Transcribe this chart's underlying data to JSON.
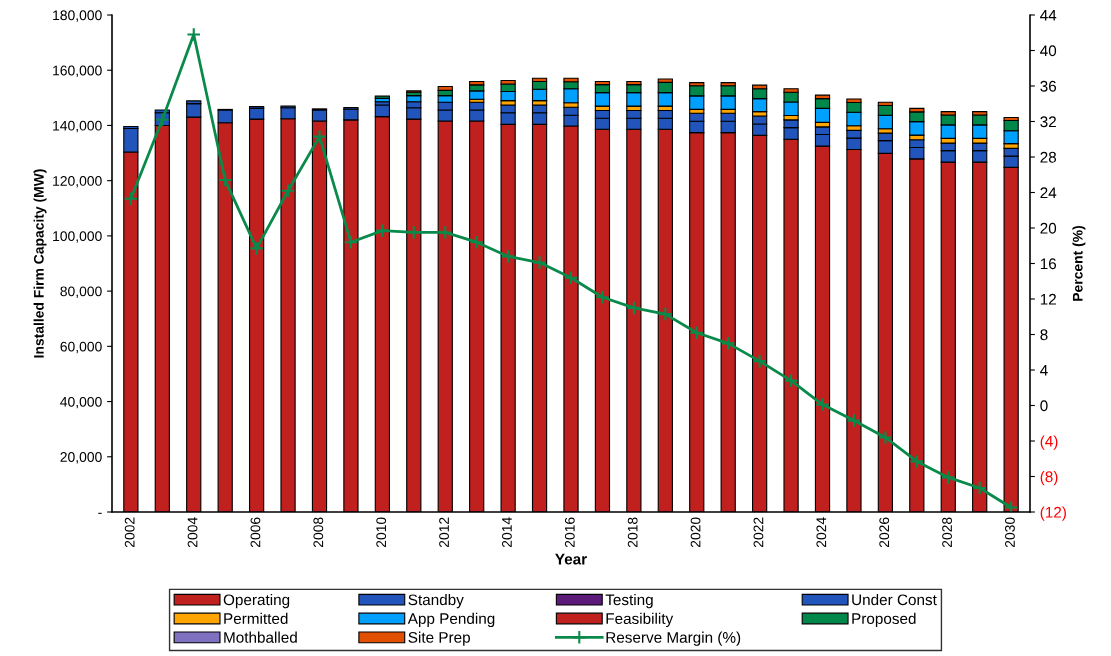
{
  "chart_data": {
    "type": "bar",
    "stacked": true,
    "xlabel": "Year",
    "ylabel": "Installed Firm Capacity (MW)",
    "y2label": "Percent (%)",
    "categories": [
      "2002",
      null,
      "2004",
      null,
      "2006",
      null,
      "2008",
      null,
      "2010",
      null,
      "2012",
      null,
      "2014",
      null,
      "2016",
      null,
      "2018",
      null,
      "2020",
      null,
      "2022",
      null,
      "2024",
      null,
      "2026",
      null,
      "2028",
      null,
      "2030"
    ],
    "ylim": [
      0,
      180000
    ],
    "yticks": [
      {
        "value": 0,
        "label": "-"
      },
      {
        "value": 20000,
        "label": "20,000"
      },
      {
        "value": 40000,
        "label": "40,000"
      },
      {
        "value": 60000,
        "label": "60,000"
      },
      {
        "value": 80000,
        "label": "80,000"
      },
      {
        "value": 100000,
        "label": "100,000"
      },
      {
        "value": 120000,
        "label": "120,000"
      },
      {
        "value": 140000,
        "label": "140,000"
      },
      {
        "value": 160000,
        "label": "160,000"
      },
      {
        "value": 180000,
        "label": "180,000"
      }
    ],
    "y2lim": [
      -12,
      44
    ],
    "y2ticks": [
      {
        "value": -12,
        "label": "(12)"
      },
      {
        "value": -8,
        "label": "(8)"
      },
      {
        "value": -4,
        "label": "(4)"
      },
      0,
      4,
      8,
      12,
      16,
      20,
      24,
      28,
      32,
      36,
      40,
      44
    ],
    "grid": false,
    "legend": "bottom",
    "series": [
      {
        "name": "Operating",
        "color": "#c0201e",
        "values": [
          130400,
          140000,
          143000,
          141000,
          142300,
          142400,
          141600,
          142000,
          143200,
          142300,
          141600,
          141600,
          140400,
          140400,
          139800,
          138600,
          138600,
          138600,
          137400,
          137400,
          136400,
          135000,
          132500,
          131300,
          129900,
          127900,
          126700,
          126700,
          124800
        ]
      },
      {
        "name": "Standby",
        "color": "#2255bb",
        "values": [
          8500,
          4600,
          4900,
          4600,
          3900,
          4000,
          4000,
          3900,
          4200,
          4100,
          4000,
          4000,
          4200,
          4200,
          3900,
          4000,
          4000,
          4000,
          4100,
          4100,
          4100,
          4200,
          4200,
          4100,
          4600,
          4100,
          4200,
          4200,
          4100
        ]
      },
      {
        "name": "Testing",
        "color": "#5c1a7a",
        "values": [
          0,
          0,
          0,
          0,
          0,
          0,
          0,
          0,
          0,
          0,
          0,
          0,
          0,
          0,
          0,
          0,
          0,
          0,
          0,
          0,
          0,
          0,
          0,
          0,
          0,
          0,
          0,
          0,
          0
        ]
      },
      {
        "name": "Under Const",
        "color": "#2255bb",
        "values": [
          700,
          1000,
          1000,
          200,
          600,
          600,
          400,
          600,
          1200,
          2200,
          2800,
          2800,
          2800,
          2800,
          2900,
          2800,
          2800,
          2800,
          2900,
          2900,
          2900,
          2800,
          2800,
          2800,
          2700,
          2800,
          2700,
          2700,
          2800
        ]
      },
      {
        "name": "Permitted",
        "color": "#ffa500",
        "values": [
          0,
          0,
          0,
          0,
          0,
          0,
          0,
          0,
          0,
          0,
          null,
          1100,
          1600,
          1600,
          1600,
          1600,
          1600,
          1600,
          1400,
          1400,
          1600,
          1600,
          1600,
          1700,
          1600,
          1700,
          1700,
          1700,
          1700
        ]
      },
      {
        "name": "App Pending",
        "color": "#00a0ff",
        "values": [
          0,
          0,
          0,
          0,
          0,
          0,
          0,
          0,
          1200,
          2200,
          2400,
          3000,
          3300,
          4100,
          5100,
          4900,
          4900,
          4900,
          4900,
          4900,
          4700,
          4900,
          5100,
          4900,
          4900,
          4900,
          4900,
          4900,
          4700
        ]
      },
      {
        "name": "Feasibility",
        "color": "#c0201e",
        "values": [
          0,
          0,
          0,
          0,
          0,
          0,
          0,
          0,
          0,
          0,
          0,
          0,
          0,
          0,
          0,
          0,
          0,
          0,
          0,
          0,
          0,
          0,
          0,
          0,
          0,
          0,
          0,
          0,
          0
        ]
      },
      {
        "name": "Proposed",
        "color": "#00884a",
        "values": [
          0,
          0,
          0,
          0,
          0,
          0,
          0,
          0,
          800,
          1200,
          1900,
          2200,
          2700,
          2800,
          2500,
          2900,
          2900,
          3700,
          3700,
          3700,
          3600,
          3500,
          3500,
          3500,
          3500,
          3500,
          3600,
          3600,
          3700
        ]
      },
      {
        "name": "Mothballed",
        "color": "#8070c0",
        "values": [
          0,
          0,
          0,
          0,
          0,
          0,
          0,
          0,
          0,
          0,
          0,
          0,
          0,
          0,
          0,
          0,
          0,
          0,
          0,
          0,
          0,
          0,
          0,
          0,
          0,
          0,
          0,
          0,
          0
        ]
      },
      {
        "name": "Site Prep",
        "color": "#e05000",
        "values": [
          0,
          0,
          0,
          0,
          0,
          0,
          0,
          0,
          0,
          500,
          1400,
          1200,
          1300,
          1200,
          1300,
          1100,
          1100,
          1200,
          1100,
          1100,
          1300,
          1300,
          1300,
          1300,
          1200,
          1300,
          1200,
          1200,
          1100
        ]
      },
      {
        "name": "Reserve Margin (%)",
        "type": "line",
        "axis": "y2",
        "color": "#0a8a4a",
        "marker": "cross",
        "line_style": "solid",
        "values": [
          23.3,
          32.2,
          41.8,
          25.4,
          17.7,
          24.2,
          30.3,
          18.4,
          19.7,
          19.5,
          19.5,
          18.4,
          16.8,
          16.1,
          14.4,
          12.2,
          11.0,
          10.3,
          8.2,
          7.0,
          5.0,
          2.8,
          0.1,
          -1.7,
          -3.6,
          -6.3,
          -8.1,
          -9.3,
          -11.5
        ]
      }
    ]
  }
}
